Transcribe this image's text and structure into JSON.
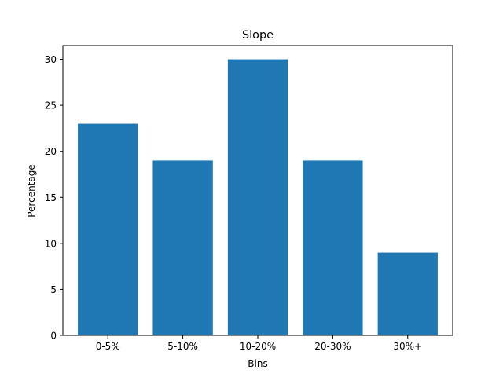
{
  "chart_data": {
    "type": "bar",
    "title": "Slope",
    "xlabel": "Bins",
    "ylabel": "Percentage",
    "categories": [
      "0-5%",
      "5-10%",
      "10-20%",
      "20-30%",
      "30%+"
    ],
    "values": [
      23,
      19,
      30,
      19,
      9
    ],
    "ylim": [
      0,
      31.5
    ],
    "yticks": [
      0,
      5,
      10,
      15,
      20,
      25,
      30
    ],
    "bar_color": "#1f77b4",
    "grid": false,
    "legend": "none"
  }
}
